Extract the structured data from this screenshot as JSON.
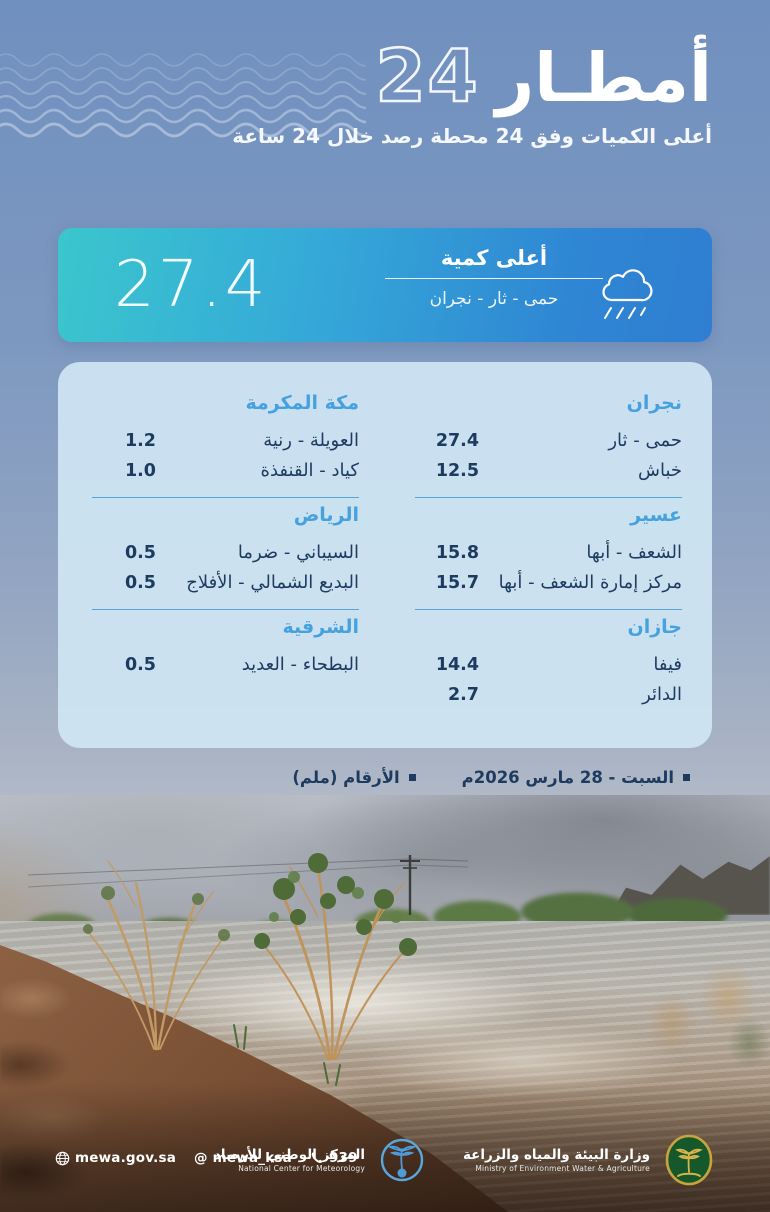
{
  "poster": {
    "title_word": "أمطـار",
    "title_number": "24",
    "subtitle": "أعلى الكميات وفق 24 محطة رصد خلال 24 ساعة"
  },
  "highlight": {
    "value": "27.4",
    "label": "أعلى كمية",
    "station": "حمى - ثار - نجران"
  },
  "regions": [
    {
      "name": "نجران",
      "stations": [
        {
          "name": "حمى - ثار",
          "value": "27.4"
        },
        {
          "name": "خباش",
          "value": "12.5"
        }
      ]
    },
    {
      "name": "مكة المكرمة",
      "stations": [
        {
          "name": "العويلة - رنية",
          "value": "1.2"
        },
        {
          "name": "كياد - القنفذة",
          "value": "1.0"
        }
      ]
    },
    {
      "name": "عسير",
      "stations": [
        {
          "name": "الشعف - أبها",
          "value": "15.8"
        },
        {
          "name": "مركز إمارة الشعف - أبها",
          "value": "15.7"
        }
      ]
    },
    {
      "name": "الرياض",
      "stations": [
        {
          "name": "السيباني - ضرما",
          "value": "0.5"
        },
        {
          "name": "البديع الشمالي - الأفلاج",
          "value": "0.5"
        }
      ]
    },
    {
      "name": "جازان",
      "stations": [
        {
          "name": "فيفا",
          "value": "14.4"
        },
        {
          "name": "الدائر",
          "value": "2.7"
        }
      ]
    },
    {
      "name": "الشرقية",
      "stations": [
        {
          "name": "البطحاء - العديد",
          "value": "0.5"
        }
      ]
    }
  ],
  "notes": {
    "date": "السبت - 28 مارس 2026م",
    "unit": "الأرقام (ملم)"
  },
  "footer": {
    "website": "mewa.gov.sa",
    "social_handle": "@ mewa_ksa",
    "phone": "939",
    "ncm": {
      "ar": "المركز الوطني للأرصاد",
      "en": "National Center for Meteorology"
    },
    "mewa": {
      "ar": "وزارة البيئة والمياه والزراعة",
      "en": "Ministry of Environment Water & Agriculture"
    }
  },
  "colors": {
    "accent_teal": "#3bc6cd",
    "accent_blue": "#2f7ed2",
    "table_bg": "#cee4f2",
    "region_header": "#46a2de",
    "text_navy": "#1d3a5f",
    "ncm_blue": "#4f9cd8",
    "mewa_green": "#15582b",
    "mewa_gold": "#c9a43c"
  }
}
